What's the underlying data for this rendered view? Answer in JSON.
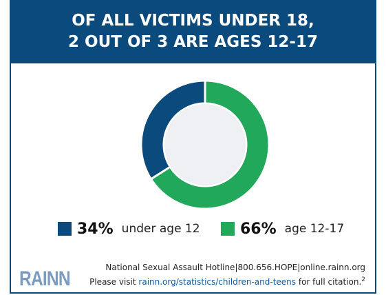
{
  "header": {
    "line1": "OF ALL VICTIMS UNDER 18,",
    "line2": "2 OUT OF 3 ARE AGES 12-17"
  },
  "colors": {
    "brand": "#0b4a7c",
    "under12": "#0b4a7c",
    "age12to17": "#22a85a",
    "logo": "#7a9cc0"
  },
  "chart_data": {
    "type": "pie",
    "variant": "donut",
    "slices": [
      {
        "label": "under age 12",
        "pct_label": "34%",
        "value": 34,
        "color": "#0b4a7c"
      },
      {
        "label": "age 12-17",
        "pct_label": "66%",
        "value": 66,
        "color": "#22a85a"
      }
    ],
    "legend_position": "bottom"
  },
  "footer": {
    "logo": "RAINN",
    "hotline": "National Sexual Assault Hotline|800.656.HOPE|online.rainn.org",
    "visit_prefix": "Please visit ",
    "visit_link": "rainn.org/statistics/children-and-teens",
    "visit_suffix": " for full citation.",
    "citation_number": "2"
  }
}
